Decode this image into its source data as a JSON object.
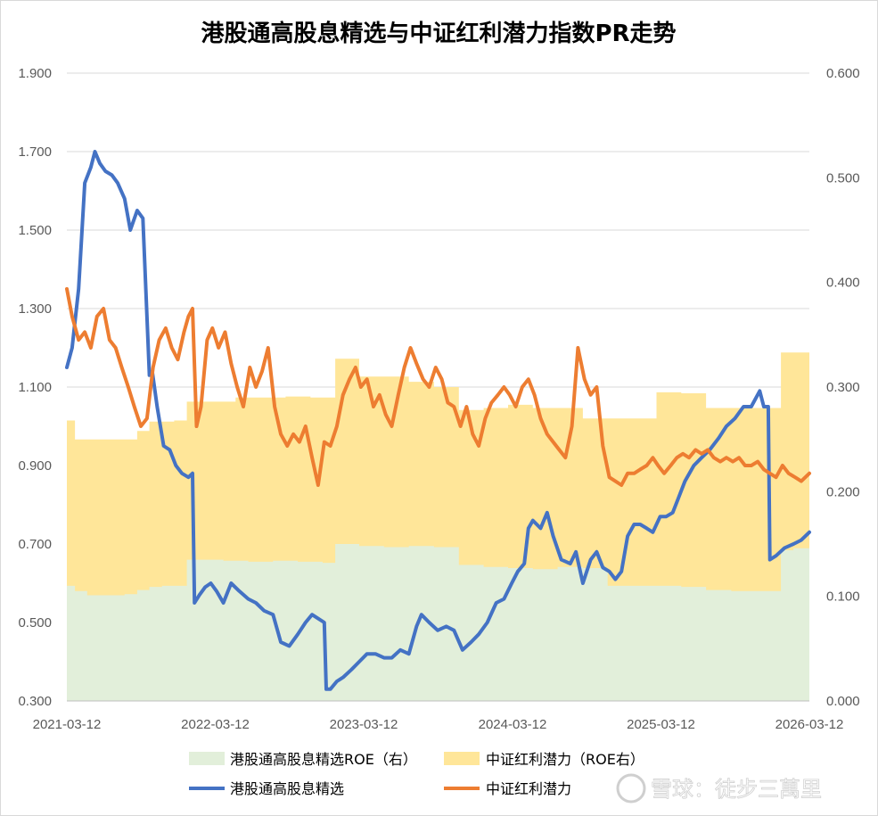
{
  "chart_data": {
    "type": "line",
    "title": "港股通高股息精选与中证红利潜力指数PR走势",
    "x_tick_labels": [
      "2021-03-12",
      "2022-03-12",
      "2023-03-12",
      "2024-03-12",
      "2025-03-12",
      "2026-03-12"
    ],
    "x_range": [
      "2021-03-12",
      "2026-03-12"
    ],
    "y_left": {
      "ticks": [
        "0.300",
        "0.500",
        "0.700",
        "0.900",
        "1.100",
        "1.300",
        "1.500",
        "1.700",
        "1.900"
      ],
      "range": [
        0.3,
        1.9
      ]
    },
    "y_right": {
      "ticks": [
        "0.000",
        "0.100",
        "0.200",
        "0.300",
        "0.400",
        "0.500",
        "0.600"
      ],
      "range": [
        0,
        0.6
      ]
    },
    "grid": "horizontal",
    "legend_position": "bottom",
    "series": [
      {
        "name": "港股通高股息精选ROE（右）",
        "type": "area",
        "axis": "right",
        "color": "#e2efda",
        "x": [
          "2021-03-12",
          "2021-04-01",
          "2021-05-01",
          "2021-06-01",
          "2021-07-01",
          "2021-08-01",
          "2021-09-01",
          "2021-10-01",
          "2021-11-01",
          "2021-12-01",
          "2022-01-01",
          "2022-02-01",
          "2022-03-01",
          "2022-04-01",
          "2022-06-01",
          "2022-08-01",
          "2022-10-01",
          "2022-12-01",
          "2023-01-01",
          "2023-03-01",
          "2023-05-01",
          "2023-07-01",
          "2023-09-01",
          "2023-11-01",
          "2024-01-01",
          "2024-03-01",
          "2024-05-01",
          "2024-07-01",
          "2024-09-01",
          "2024-11-01",
          "2025-01-01",
          "2025-03-01",
          "2025-05-01",
          "2025-07-01",
          "2025-09-01",
          "2025-11-01",
          "2025-12-01",
          "2026-01-01",
          "2026-02-01",
          "2026-03-12"
        ],
        "values": [
          0.11,
          0.105,
          0.101,
          0.101,
          0.101,
          0.102,
          0.106,
          0.109,
          0.11,
          0.11,
          0.135,
          0.135,
          0.135,
          0.134,
          0.133,
          0.134,
          0.133,
          0.132,
          0.15,
          0.148,
          0.147,
          0.148,
          0.147,
          0.13,
          0.128,
          0.127,
          0.126,
          0.128,
          0.127,
          0.11,
          0.11,
          0.11,
          0.109,
          0.106,
          0.105,
          0.105,
          0.105,
          0.144,
          0.146,
          0.15
        ]
      },
      {
        "name": "中证红利潜力（ROE右）",
        "type": "area",
        "axis": "right",
        "color": "#ffe699",
        "x": [
          "2021-03-12",
          "2021-04-01",
          "2021-05-01",
          "2021-06-01",
          "2021-07-01",
          "2021-08-01",
          "2021-09-01",
          "2021-10-01",
          "2021-11-01",
          "2021-12-01",
          "2022-01-01",
          "2022-03-01",
          "2022-05-01",
          "2022-07-01",
          "2022-09-01",
          "2022-11-01",
          "2022-12-15",
          "2023-01-01",
          "2023-03-01",
          "2023-05-01",
          "2023-07-01",
          "2023-09-01",
          "2023-11-01",
          "2024-01-01",
          "2024-03-01",
          "2024-05-01",
          "2024-07-01",
          "2024-09-01",
          "2024-11-01",
          "2025-01-01",
          "2025-03-01",
          "2025-05-01",
          "2025-07-01",
          "2025-09-01",
          "2025-11-01",
          "2025-12-15",
          "2026-01-01",
          "2026-03-12"
        ],
        "values": [
          0.268,
          0.25,
          0.25,
          0.25,
          0.25,
          0.25,
          0.258,
          0.267,
          0.267,
          0.268,
          0.286,
          0.286,
          0.29,
          0.29,
          0.291,
          0.29,
          0.29,
          0.327,
          0.31,
          0.31,
          0.305,
          0.3,
          0.278,
          0.28,
          0.283,
          0.28,
          0.28,
          0.27,
          0.27,
          0.27,
          0.295,
          0.294,
          0.28,
          0.28,
          0.28,
          0.28,
          0.333,
          0.333
        ]
      },
      {
        "name": "港股通高股息精选",
        "type": "line",
        "axis": "left",
        "color": "#4472c4",
        "x": [
          "2021-03-12",
          "2021-03-25",
          "2021-04-10",
          "2021-04-25",
          "2021-05-10",
          "2021-05-20",
          "2021-06-01",
          "2021-06-15",
          "2021-07-01",
          "2021-07-15",
          "2021-08-01",
          "2021-08-15",
          "2021-09-01",
          "2021-09-15",
          "2021-10-01",
          "2021-10-08",
          "2021-10-20",
          "2021-11-05",
          "2021-11-20",
          "2021-12-05",
          "2021-12-20",
          "2022-01-05",
          "2022-01-15",
          "2022-01-20",
          "2022-02-01",
          "2022-02-15",
          "2022-03-01",
          "2022-03-15",
          "2022-04-01",
          "2022-04-20",
          "2022-05-10",
          "2022-06-01",
          "2022-06-20",
          "2022-07-10",
          "2022-08-01",
          "2022-08-20",
          "2022-09-10",
          "2022-10-01",
          "2022-10-20",
          "2022-11-05",
          "2022-11-20",
          "2022-12-05",
          "2022-12-10",
          "2022-12-20",
          "2023-01-05",
          "2023-01-20",
          "2023-02-10",
          "2023-03-01",
          "2023-03-20",
          "2023-04-10",
          "2023-05-01",
          "2023-05-20",
          "2023-06-10",
          "2023-07-01",
          "2023-07-20",
          "2023-08-01",
          "2023-08-20",
          "2023-09-10",
          "2023-10-01",
          "2023-10-20",
          "2023-11-10",
          "2023-12-01",
          "2023-12-20",
          "2024-01-10",
          "2024-02-01",
          "2024-02-20",
          "2024-03-10",
          "2024-03-25",
          "2024-04-10",
          "2024-04-20",
          "2024-05-01",
          "2024-05-20",
          "2024-06-05",
          "2024-06-20",
          "2024-07-10",
          "2024-08-01",
          "2024-08-15",
          "2024-09-01",
          "2024-09-20",
          "2024-10-05",
          "2024-10-20",
          "2024-11-05",
          "2024-11-20",
          "2024-12-05",
          "2024-12-20",
          "2025-01-05",
          "2025-01-20",
          "2025-02-05",
          "2025-02-20",
          "2025-03-10",
          "2025-03-25",
          "2025-04-10",
          "2025-04-25",
          "2025-05-10",
          "2025-06-01",
          "2025-06-20",
          "2025-07-10",
          "2025-08-01",
          "2025-08-20",
          "2025-09-10",
          "2025-10-01",
          "2025-10-20",
          "2025-11-10",
          "2025-11-20",
          "2025-12-01",
          "2025-12-05",
          "2025-12-20",
          "2026-01-10",
          "2026-02-01",
          "2026-02-20",
          "2026-03-12"
        ],
        "values": [
          1.15,
          1.2,
          1.35,
          1.62,
          1.66,
          1.7,
          1.67,
          1.65,
          1.64,
          1.62,
          1.58,
          1.5,
          1.55,
          1.53,
          1.13,
          1.14,
          1.05,
          0.95,
          0.94,
          0.9,
          0.88,
          0.87,
          0.88,
          0.55,
          0.57,
          0.59,
          0.6,
          0.58,
          0.55,
          0.6,
          0.58,
          0.56,
          0.55,
          0.53,
          0.52,
          0.45,
          0.44,
          0.47,
          0.5,
          0.52,
          0.51,
          0.5,
          0.33,
          0.33,
          0.35,
          0.36,
          0.38,
          0.4,
          0.42,
          0.42,
          0.41,
          0.41,
          0.43,
          0.42,
          0.49,
          0.52,
          0.5,
          0.48,
          0.49,
          0.48,
          0.43,
          0.45,
          0.47,
          0.5,
          0.55,
          0.56,
          0.6,
          0.63,
          0.65,
          0.74,
          0.76,
          0.74,
          0.78,
          0.72,
          0.66,
          0.65,
          0.68,
          0.6,
          0.66,
          0.68,
          0.64,
          0.63,
          0.61,
          0.63,
          0.72,
          0.75,
          0.75,
          0.74,
          0.73,
          0.77,
          0.77,
          0.78,
          0.82,
          0.86,
          0.9,
          0.92,
          0.94,
          0.97,
          1.0,
          1.02,
          1.05,
          1.05,
          1.09,
          1.05,
          1.05,
          0.66,
          0.67,
          0.69,
          0.7,
          0.71,
          0.73
        ]
      },
      {
        "name": "中证红利潜力",
        "type": "line",
        "axis": "left",
        "color": "#ed7d31",
        "x": [
          "2021-03-12",
          "2021-03-25",
          "2021-04-10",
          "2021-04-25",
          "2021-05-10",
          "2021-05-25",
          "2021-06-10",
          "2021-06-25",
          "2021-07-10",
          "2021-07-25",
          "2021-08-10",
          "2021-08-25",
          "2021-09-10",
          "2021-09-25",
          "2021-10-10",
          "2021-10-25",
          "2021-11-10",
          "2021-11-25",
          "2021-12-10",
          "2021-12-25",
          "2022-01-05",
          "2022-01-15",
          "2022-01-25",
          "2022-02-05",
          "2022-02-20",
          "2022-03-05",
          "2022-03-20",
          "2022-04-05",
          "2022-04-20",
          "2022-05-05",
          "2022-05-20",
          "2022-06-05",
          "2022-06-20",
          "2022-07-05",
          "2022-07-20",
          "2022-08-05",
          "2022-08-20",
          "2022-09-05",
          "2022-09-20",
          "2022-10-05",
          "2022-10-20",
          "2022-11-05",
          "2022-11-20",
          "2022-12-05",
          "2022-12-20",
          "2023-01-05",
          "2023-01-20",
          "2023-02-05",
          "2023-02-20",
          "2023-03-05",
          "2023-03-20",
          "2023-04-05",
          "2023-04-20",
          "2023-05-05",
          "2023-05-20",
          "2023-06-05",
          "2023-06-20",
          "2023-07-05",
          "2023-07-20",
          "2023-08-05",
          "2023-08-20",
          "2023-09-05",
          "2023-09-20",
          "2023-10-05",
          "2023-10-20",
          "2023-11-05",
          "2023-11-20",
          "2023-12-05",
          "2023-12-20",
          "2024-01-05",
          "2024-01-20",
          "2024-02-05",
          "2024-02-20",
          "2024-03-05",
          "2024-03-20",
          "2024-04-05",
          "2024-04-20",
          "2024-05-05",
          "2024-05-20",
          "2024-06-05",
          "2024-06-20",
          "2024-07-05",
          "2024-07-20",
          "2024-08-05",
          "2024-08-20",
          "2024-09-05",
          "2024-09-20",
          "2024-10-05",
          "2024-10-20",
          "2024-11-05",
          "2024-11-20",
          "2024-12-05",
          "2024-12-20",
          "2025-01-05",
          "2025-01-20",
          "2025-02-05",
          "2025-02-20",
          "2025-03-05",
          "2025-03-20",
          "2025-04-05",
          "2025-04-20",
          "2025-05-05",
          "2025-05-20",
          "2025-06-05",
          "2025-06-20",
          "2025-07-05",
          "2025-07-20",
          "2025-08-05",
          "2025-08-20",
          "2025-09-05",
          "2025-09-20",
          "2025-10-05",
          "2025-10-20",
          "2025-11-05",
          "2025-11-20",
          "2025-12-05",
          "2025-12-20",
          "2026-01-05",
          "2026-01-20",
          "2026-02-05",
          "2026-02-20",
          "2026-03-12"
        ],
        "values": [
          1.35,
          1.28,
          1.22,
          1.24,
          1.2,
          1.28,
          1.3,
          1.22,
          1.2,
          1.15,
          1.1,
          1.05,
          1.0,
          1.02,
          1.15,
          1.22,
          1.25,
          1.2,
          1.17,
          1.24,
          1.28,
          1.3,
          1.0,
          1.05,
          1.22,
          1.25,
          1.2,
          1.24,
          1.16,
          1.1,
          1.05,
          1.15,
          1.1,
          1.14,
          1.2,
          1.05,
          0.98,
          0.95,
          0.98,
          0.96,
          1.0,
          0.92,
          0.85,
          0.96,
          0.95,
          1.0,
          1.08,
          1.12,
          1.15,
          1.1,
          1.12,
          1.05,
          1.08,
          1.03,
          1.0,
          1.08,
          1.15,
          1.2,
          1.16,
          1.12,
          1.1,
          1.15,
          1.12,
          1.06,
          1.05,
          1.0,
          1.05,
          0.98,
          0.95,
          1.02,
          1.06,
          1.08,
          1.1,
          1.08,
          1.05,
          1.1,
          1.12,
          1.08,
          1.02,
          0.98,
          0.96,
          0.94,
          0.92,
          1.0,
          1.2,
          1.12,
          1.08,
          1.1,
          0.95,
          0.87,
          0.86,
          0.85,
          0.88,
          0.88,
          0.89,
          0.9,
          0.92,
          0.9,
          0.88,
          0.9,
          0.92,
          0.93,
          0.92,
          0.94,
          0.93,
          0.94,
          0.92,
          0.91,
          0.92,
          0.91,
          0.92,
          0.9,
          0.9,
          0.91,
          0.89,
          0.88,
          0.87,
          0.9,
          0.88,
          0.87,
          0.86,
          0.88
        ]
      }
    ],
    "legend": [
      "港股通高股息精选ROE（右）",
      "中证红利潜力（ROE右）",
      "港股通高股息精选",
      "中证红利潜力"
    ]
  },
  "watermark": "雪球：徒步三萬里"
}
